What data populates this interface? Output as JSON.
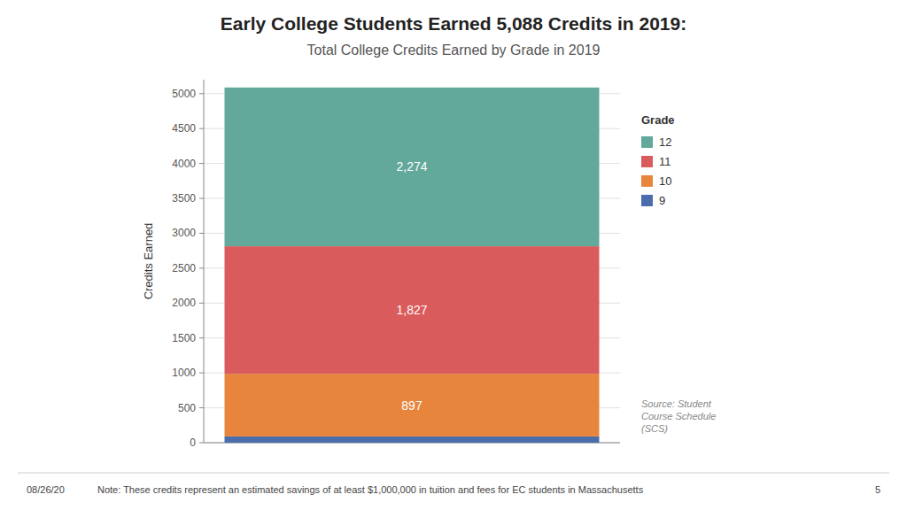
{
  "chart_data": {
    "type": "bar",
    "stacked": true,
    "title": "Early College Students Earned 5,088 Credits in 2019:",
    "subtitle": "Total College Credits Earned by Grade in 2019",
    "ylabel": "Credits Earned",
    "categories": [
      null
    ],
    "series": [
      {
        "name": "9",
        "color": "#4C6DAB",
        "values": [
          90
        ],
        "data_labels": false
      },
      {
        "name": "10",
        "color": "#E8853D",
        "values": [
          897
        ],
        "data_labels": true
      },
      {
        "name": "11",
        "color": "#D95B5B",
        "values": [
          1827
        ],
        "value_labels": [
          "1,827"
        ],
        "data_labels": true
      },
      {
        "name": "12",
        "color": "#62A89B",
        "values": [
          2274
        ],
        "value_labels": [
          "2,274"
        ],
        "data_labels": true
      }
    ],
    "ylim": [
      0,
      5200
    ],
    "yticks": [
      0,
      500,
      1000,
      1500,
      2000,
      2500,
      3000,
      3500,
      4000,
      4500,
      5000
    ],
    "grid": true,
    "legend": "right",
    "legend_title": "Grade",
    "source": "Source: Student\nCourse Schedule\n(SCS)",
    "footer_date": "08/26/20",
    "footer_note": "Note: These credits represent an estimated savings of at least $1,000,000 in tuition and fees for EC students in Massachusetts",
    "footer_page": "5"
  }
}
